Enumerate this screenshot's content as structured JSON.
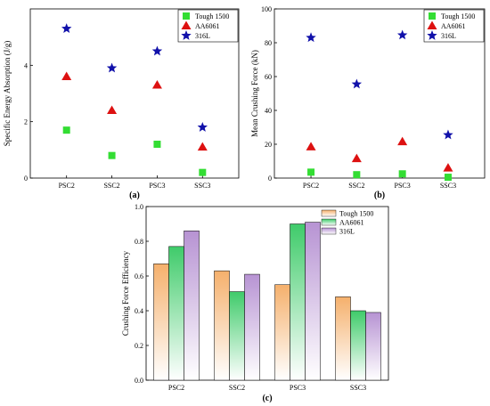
{
  "chart_data": [
    {
      "type": "scatter",
      "panel_label": "(a)",
      "title": "",
      "xlabel": "",
      "ylabel": "Specific Energy Absorption (J/g)",
      "categories": [
        "PSC2",
        "SSC2",
        "PSC3",
        "SSC3"
      ],
      "ylim": [
        0,
        6
      ],
      "yticks": [
        0,
        2,
        4
      ],
      "legend_position": "top-right",
      "series": [
        {
          "name": "Tough 1500",
          "marker": "square",
          "color": "#33dd33",
          "values": [
            1.7,
            0.8,
            1.2,
            0.2
          ]
        },
        {
          "name": "AA6061",
          "marker": "triangle",
          "color": "#dd1111",
          "values": [
            3.6,
            2.4,
            3.3,
            1.1
          ]
        },
        {
          "name": "316L",
          "marker": "star",
          "color": "#1111aa",
          "values": [
            5.3,
            3.9,
            4.5,
            1.8
          ]
        }
      ]
    },
    {
      "type": "scatter",
      "panel_label": "(b)",
      "title": "",
      "xlabel": "",
      "ylabel": "Mean Crushing Force (kN)",
      "categories": [
        "PSC2",
        "SSC2",
        "PSC3",
        "SSC3"
      ],
      "ylim": [
        0,
        100
      ],
      "yticks": [
        0,
        20,
        40,
        60,
        80,
        100
      ],
      "legend_position": "top-right",
      "series": [
        {
          "name": "Tough 1500",
          "marker": "square",
          "color": "#33dd33",
          "values": [
            3.5,
            2,
            2.5,
            0.5
          ]
        },
        {
          "name": "AA6061",
          "marker": "triangle",
          "color": "#dd1111",
          "values": [
            18.5,
            11.5,
            21.5,
            6
          ]
        },
        {
          "name": "316L",
          "marker": "star",
          "color": "#1111aa",
          "values": [
            83,
            55.5,
            84.5,
            25.5
          ]
        }
      ]
    },
    {
      "type": "bar",
      "panel_label": "(c)",
      "title": "",
      "xlabel": "",
      "ylabel": "Crushing Force Efficiency",
      "categories": [
        "PSC2",
        "SSC2",
        "PSC3",
        "SSC3"
      ],
      "ylim": [
        0,
        1.0
      ],
      "yticks": [
        0.0,
        0.2,
        0.4,
        0.6,
        0.8,
        1.0
      ],
      "legend_position": "top-right",
      "series": [
        {
          "name": "Tough 1500",
          "color": "#f5b06c",
          "values": [
            0.67,
            0.63,
            0.55,
            0.48
          ]
        },
        {
          "name": "AA6061",
          "color": "#3fcb6a",
          "values": [
            0.77,
            0.51,
            0.9,
            0.4
          ]
        },
        {
          "name": "316L",
          "color": "#b793d3",
          "values": [
            0.86,
            0.61,
            0.91,
            0.39
          ]
        }
      ]
    }
  ]
}
